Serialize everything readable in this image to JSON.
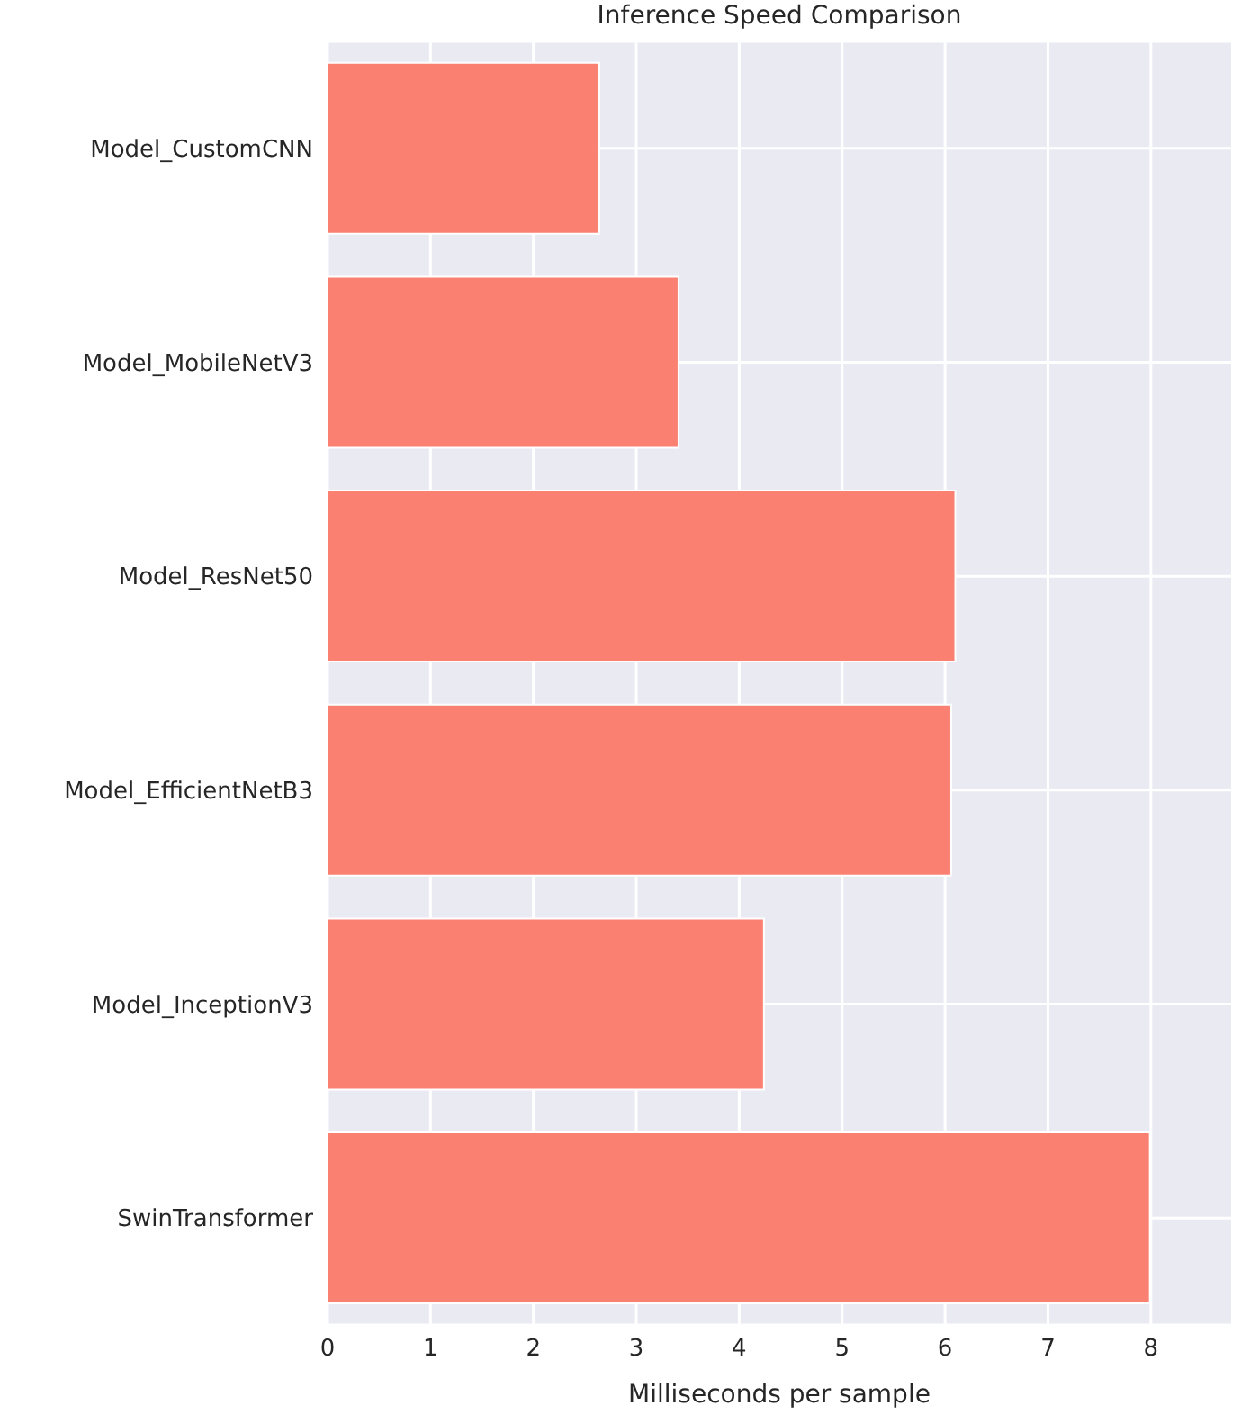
{
  "chart_data": {
    "type": "bar",
    "orientation": "horizontal",
    "title": "Inference Speed Comparison",
    "xlabel": "Milliseconds per sample",
    "categories": [
      "Model_CustomCNN",
      "Model_MobileNetV3",
      "Model_ResNet50",
      "Model_EfficientNetB3",
      "Model_InceptionV3",
      "SwinTransformer"
    ],
    "values": [
      2.64,
      3.41,
      6.1,
      6.06,
      4.24,
      7.99
    ],
    "color": "#fa8072",
    "xlim": [
      0,
      8.78
    ],
    "xticks": [
      0,
      1,
      2,
      3,
      4,
      5,
      6,
      7,
      8
    ],
    "grid": true
  }
}
